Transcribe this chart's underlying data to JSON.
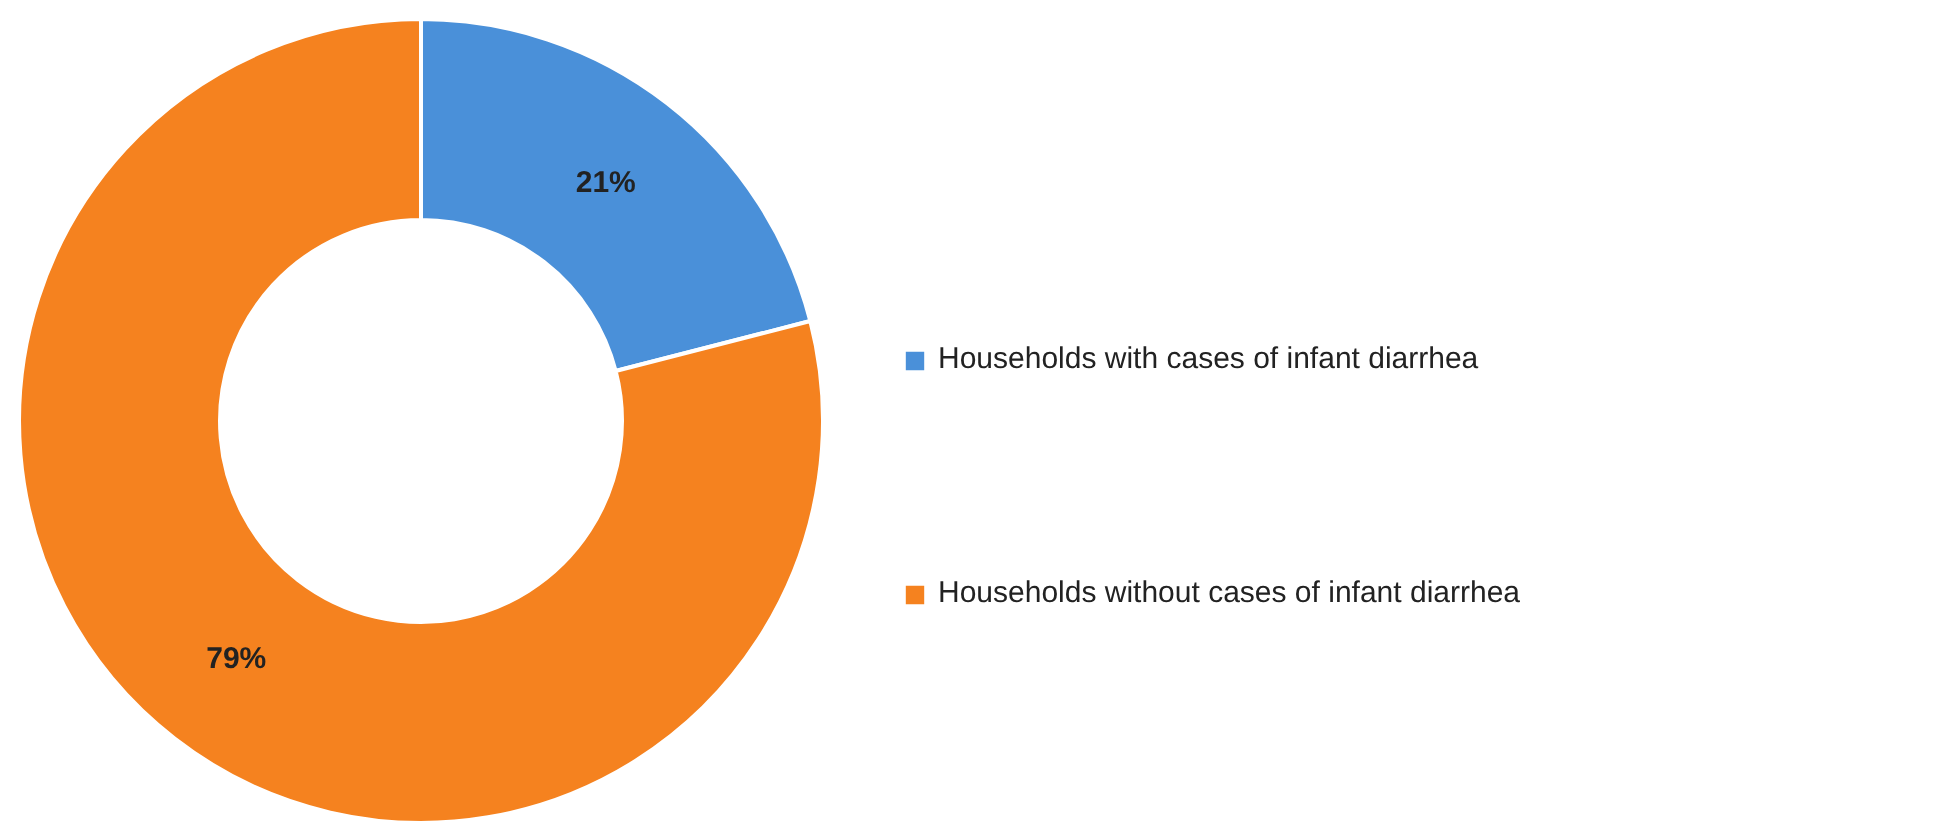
{
  "chart_data": {
    "type": "donut",
    "categories": [
      "Households with cases of infant diarrhea",
      "Households without cases of infant diarrhea"
    ],
    "values": [
      21,
      79
    ],
    "colors": [
      "#4a90d9",
      "#f5821f"
    ],
    "value_labels": [
      "21%",
      "79%"
    ],
    "legend": "right"
  }
}
